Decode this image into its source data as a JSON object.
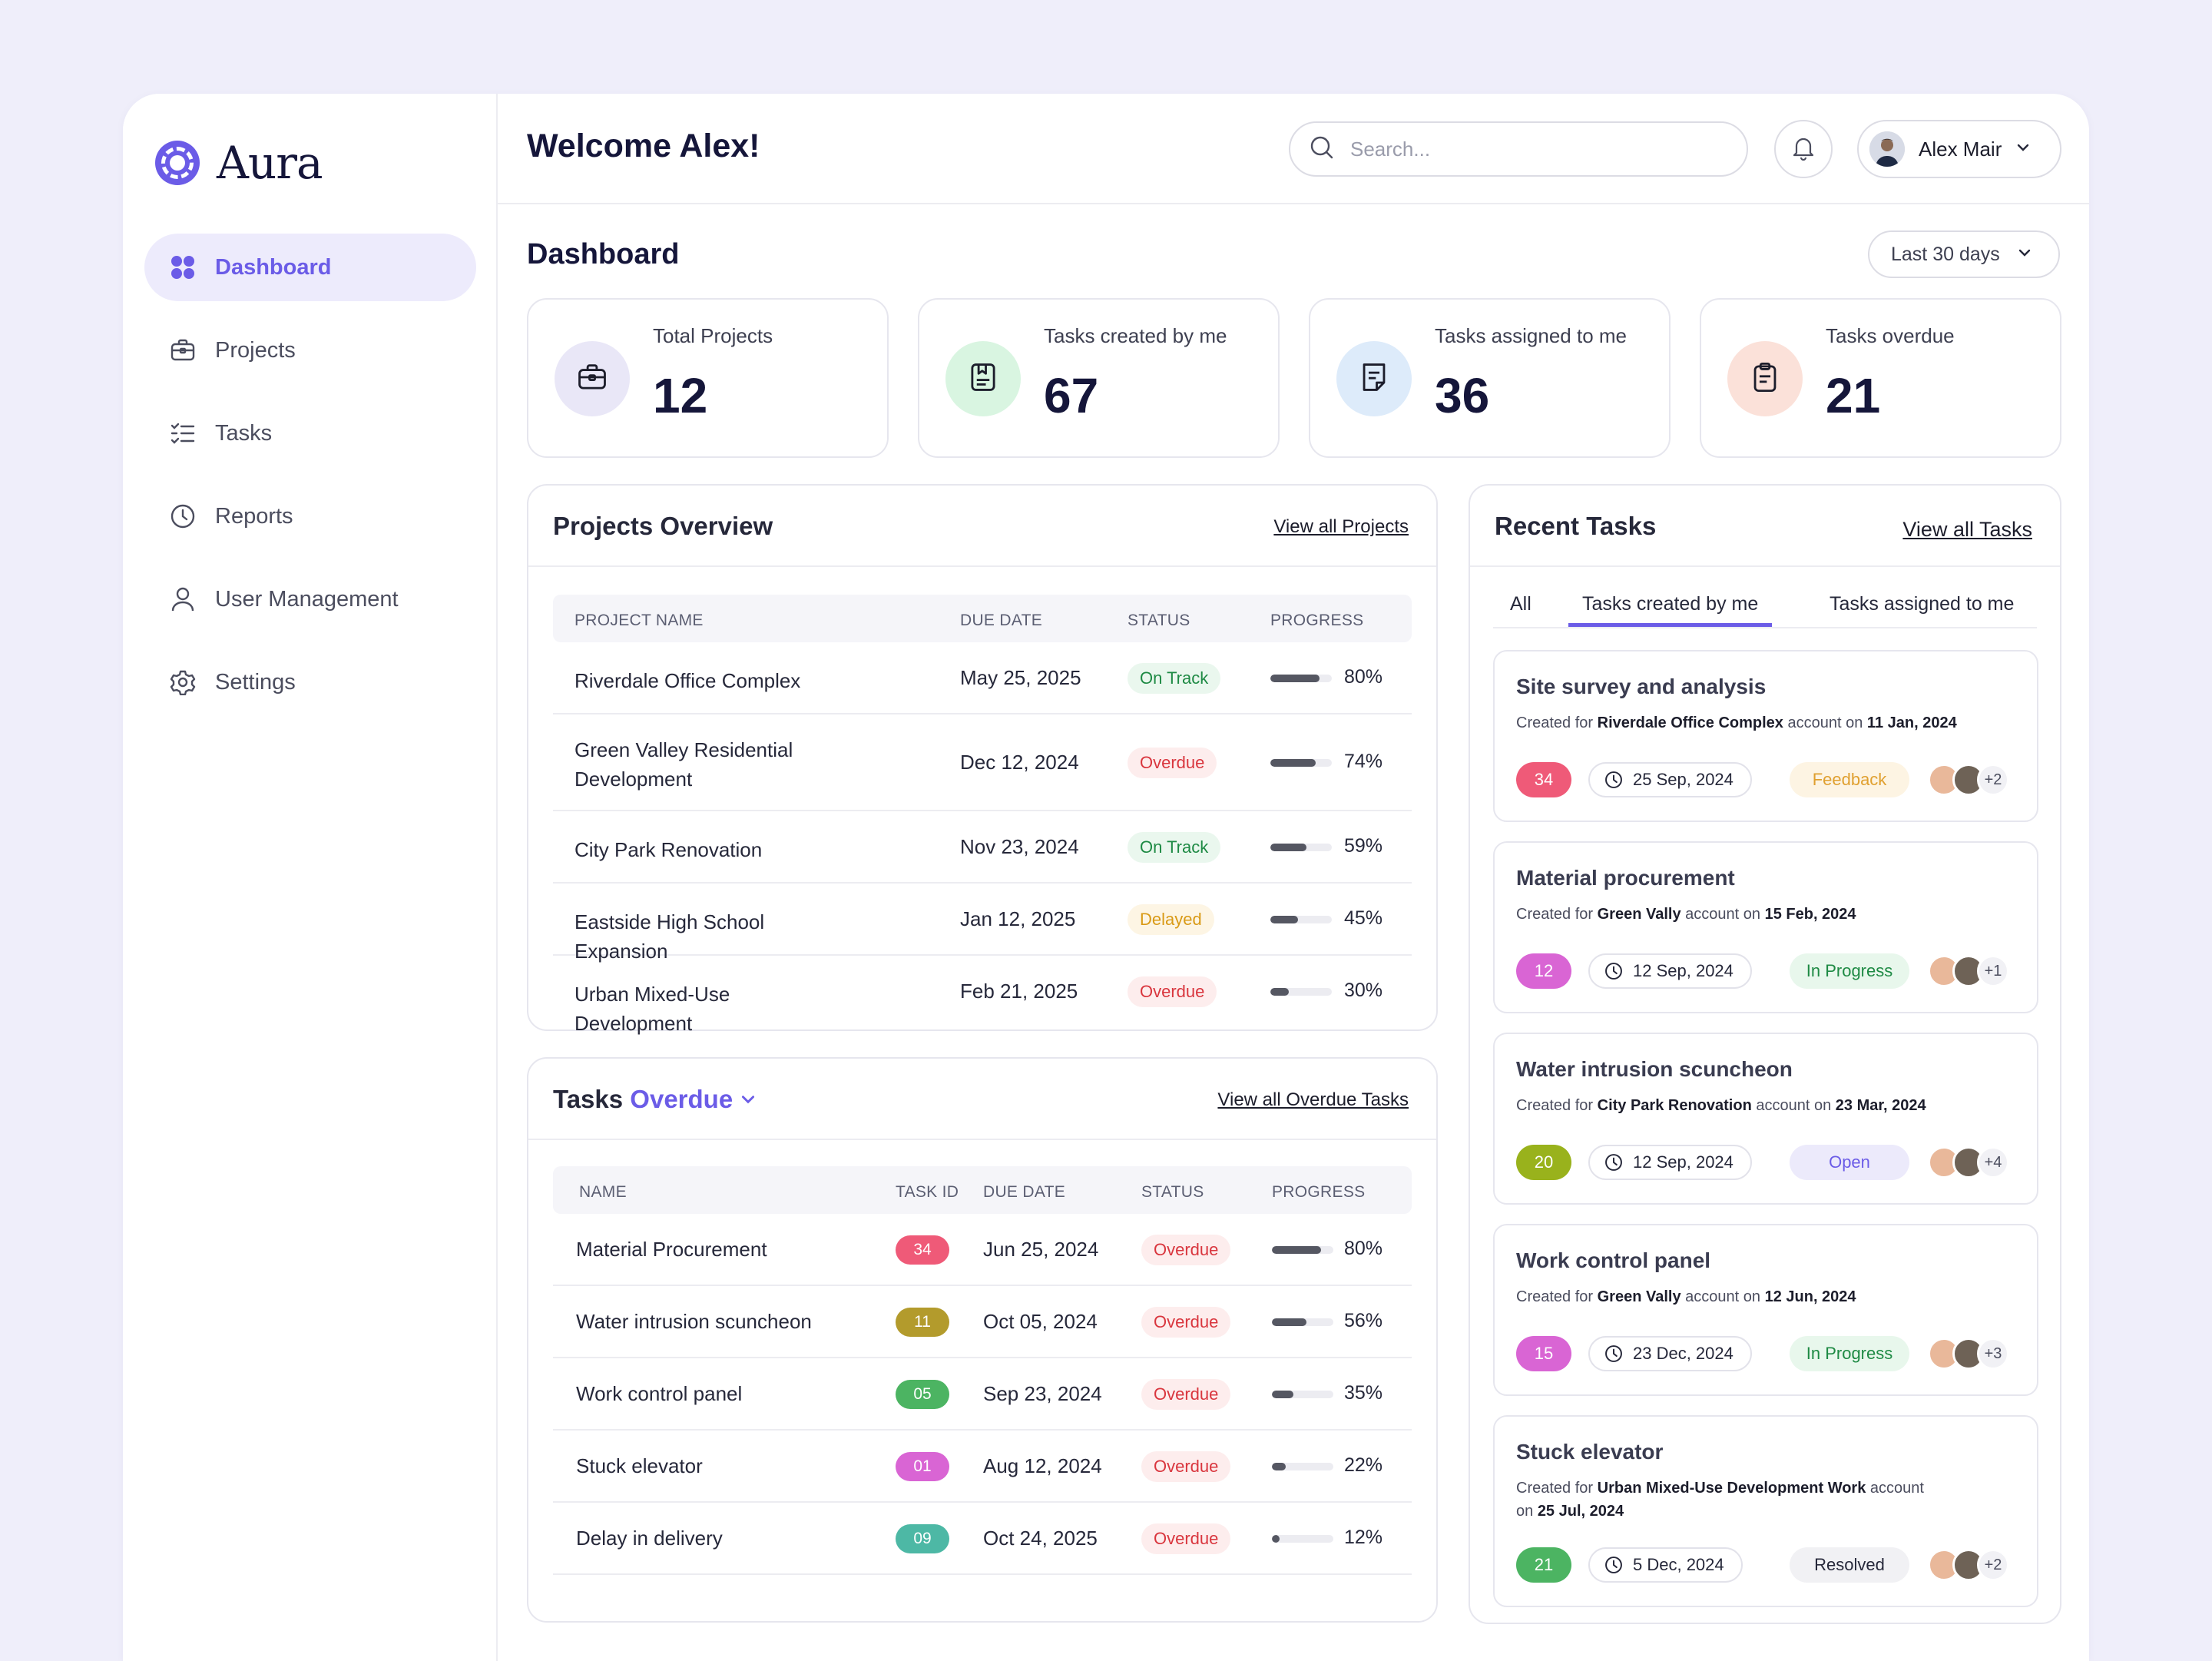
{
  "brand": {
    "name": "Aura",
    "accent": "#6B5CE7"
  },
  "sidebar": {
    "items": [
      {
        "label": "Dashboard",
        "icon": "grid-icon",
        "active": true
      },
      {
        "label": "Projects",
        "icon": "briefcase-icon"
      },
      {
        "label": "Tasks",
        "icon": "checklist-icon"
      },
      {
        "label": "Reports",
        "icon": "clock-icon"
      },
      {
        "label": "User Management",
        "icon": "user-icon"
      },
      {
        "label": "Settings",
        "icon": "gear-icon"
      }
    ]
  },
  "header": {
    "welcome": "Welcome Alex!",
    "search_placeholder": "Search...",
    "user_name": "Alex Mair"
  },
  "dashboard": {
    "title": "Dashboard",
    "period": "Last 30 days",
    "stats": [
      {
        "label": "Total Projects",
        "value": "12",
        "icon": "briefcase-icon",
        "bg": "#E9E7F7"
      },
      {
        "label": "Tasks created by me",
        "value": "67",
        "icon": "bookmark-note-icon",
        "bg": "#D9F5E1"
      },
      {
        "label": "Tasks assigned to me",
        "value": "36",
        "icon": "document-icon",
        "bg": "#DDEBFA"
      },
      {
        "label": "Tasks overdue",
        "value": "21",
        "icon": "clipboard-icon",
        "bg": "#FBE1D9"
      }
    ]
  },
  "projects": {
    "title": "Projects Overview",
    "link": "View all Projects",
    "columns": [
      "PROJECT NAME",
      "DUE DATE",
      "STATUS",
      "PROGRESS"
    ],
    "rows": [
      {
        "name": "Riverdale Office Complex",
        "due": "May 25, 2025",
        "status": "On Track",
        "progress": 80,
        "progress_label": "80%"
      },
      {
        "name": "Green Valley Residential Development",
        "due": "Dec 12, 2024",
        "status": "Overdue",
        "progress": 74,
        "progress_label": "74%"
      },
      {
        "name": "City Park Renovation",
        "due": "Nov 23, 2024",
        "status": "On Track",
        "progress": 59,
        "progress_label": "59%"
      },
      {
        "name": "Eastside High School Expansion",
        "due": "Jan 12, 2025",
        "status": "Delayed",
        "progress": 45,
        "progress_label": "45%"
      },
      {
        "name": "Urban Mixed-Use Development",
        "due": "Feb 21, 2025",
        "status": "Overdue",
        "progress": 30,
        "progress_label": "30%"
      }
    ]
  },
  "overdue": {
    "title_prefix": "Tasks",
    "title_filter": "Overdue",
    "link": "View all Overdue Tasks",
    "columns": [
      "NAME",
      "TASK ID",
      "DUE DATE",
      "STATUS",
      "PROGRESS"
    ],
    "rows": [
      {
        "name": "Material Procurement",
        "id": "34",
        "id_color": "#EF5A78",
        "due": "Jun 25, 2024",
        "status": "Overdue",
        "progress": 80,
        "progress_label": "80%"
      },
      {
        "name": "Water intrusion scuncheon",
        "id": "11",
        "id_color": "#B39B2C",
        "due": "Oct 05, 2024",
        "status": "Overdue",
        "progress": 56,
        "progress_label": "56%"
      },
      {
        "name": "Work control panel",
        "id": "05",
        "id_color": "#4CB462",
        "due": "Sep 23, 2024",
        "status": "Overdue",
        "progress": 35,
        "progress_label": "35%"
      },
      {
        "name": "Stuck elevator",
        "id": "01",
        "id_color": "#D965D4",
        "due": "Aug 12, 2024",
        "status": "Overdue",
        "progress": 22,
        "progress_label": "22%"
      },
      {
        "name": "Delay in delivery",
        "id": "09",
        "id_color": "#4DB8A5",
        "due": "Oct 24, 2025",
        "status": "Overdue",
        "progress": 12,
        "progress_label": "12%"
      }
    ]
  },
  "recent": {
    "title": "Recent Tasks",
    "link": "View all Tasks",
    "tabs": [
      "All",
      "Tasks created by me",
      "Tasks assigned to me"
    ],
    "active_tab": 1,
    "tasks": [
      {
        "title": "Site survey and analysis",
        "created_prefix": "Created for",
        "account": "Riverdale Office Complex",
        "account_mid": "account on",
        "created_date": "11 Jan, 2024",
        "num": "34",
        "num_color": "#EF5A78",
        "due": "25 Sep, 2024",
        "status": "Feedback",
        "status_bg": "#FDF4E3",
        "status_fg": "#E0A030",
        "more": "+2"
      },
      {
        "title": "Material procurement",
        "created_prefix": "Created for",
        "account": "Green Vally",
        "account_mid": "account on",
        "created_date": "15 Feb, 2024",
        "num": "12",
        "num_color": "#D965D4",
        "due": "12 Sep, 2024",
        "status": "In Progress",
        "status_bg": "#E8F7EC",
        "status_fg": "#1E8A44",
        "more": "+1"
      },
      {
        "title": "Water intrusion scuncheon",
        "created_prefix": "Created for",
        "account": "City Park Renovation",
        "account_mid": "account on",
        "created_date": "23 Mar, 2024",
        "num": "20",
        "num_color": "#99B21C",
        "due": "12 Sep, 2024",
        "status": "Open",
        "status_bg": "#ECEAFB",
        "status_fg": "#6B5CE7",
        "more": "+4"
      },
      {
        "title": "Work control panel",
        "created_prefix": "Created for",
        "account": "Green Vally",
        "account_mid": "account on",
        "created_date": "12 Jun, 2024",
        "num": "15",
        "num_color": "#D965D4",
        "due": "23 Dec, 2024",
        "status": "In Progress",
        "status_bg": "#E8F7EC",
        "status_fg": "#1E8A44",
        "more": "+3"
      },
      {
        "title": "Stuck elevator",
        "created_prefix": "Created for",
        "account": "Urban Mixed-Use Development Work",
        "account_mid": "account",
        "account_tail": "on",
        "created_date": "25 Jul, 2024",
        "num": "21",
        "num_color": "#4CB462",
        "due": "5 Dec, 2024",
        "status": "Resolved",
        "status_bg": "#F1F1F4",
        "status_fg": "#26283A",
        "more": "+2"
      }
    ]
  }
}
